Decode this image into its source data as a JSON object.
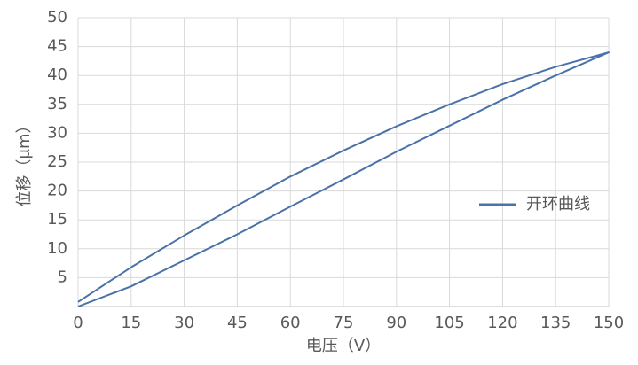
{
  "chart_data": {
    "type": "line",
    "x_label": "电压（V）",
    "y_label": "位移（μm）",
    "x": [
      0,
      15,
      30,
      45,
      60,
      75,
      90,
      105,
      120,
      135,
      150,
      150,
      135,
      120,
      105,
      90,
      75,
      60,
      45,
      30,
      15,
      0
    ],
    "series": [
      {
        "name": "开环曲线",
        "color": "#4a72a8",
        "values": [
          0,
          3.5,
          8,
          12.5,
          17.3,
          22,
          26.8,
          31.3,
          35.8,
          40,
          44,
          44,
          41.5,
          38.5,
          35,
          31.2,
          27,
          22.5,
          17.5,
          12.3,
          6.8,
          0.8
        ]
      }
    ],
    "xlim": [
      0,
      150
    ],
    "xticks": [
      0,
      15,
      30,
      45,
      60,
      75,
      90,
      105,
      120,
      135,
      150
    ],
    "ylim": [
      0,
      50
    ],
    "yticks": [
      5,
      10,
      15,
      20,
      25,
      30,
      35,
      40,
      45,
      50
    ],
    "grid": true,
    "legend": "right"
  }
}
